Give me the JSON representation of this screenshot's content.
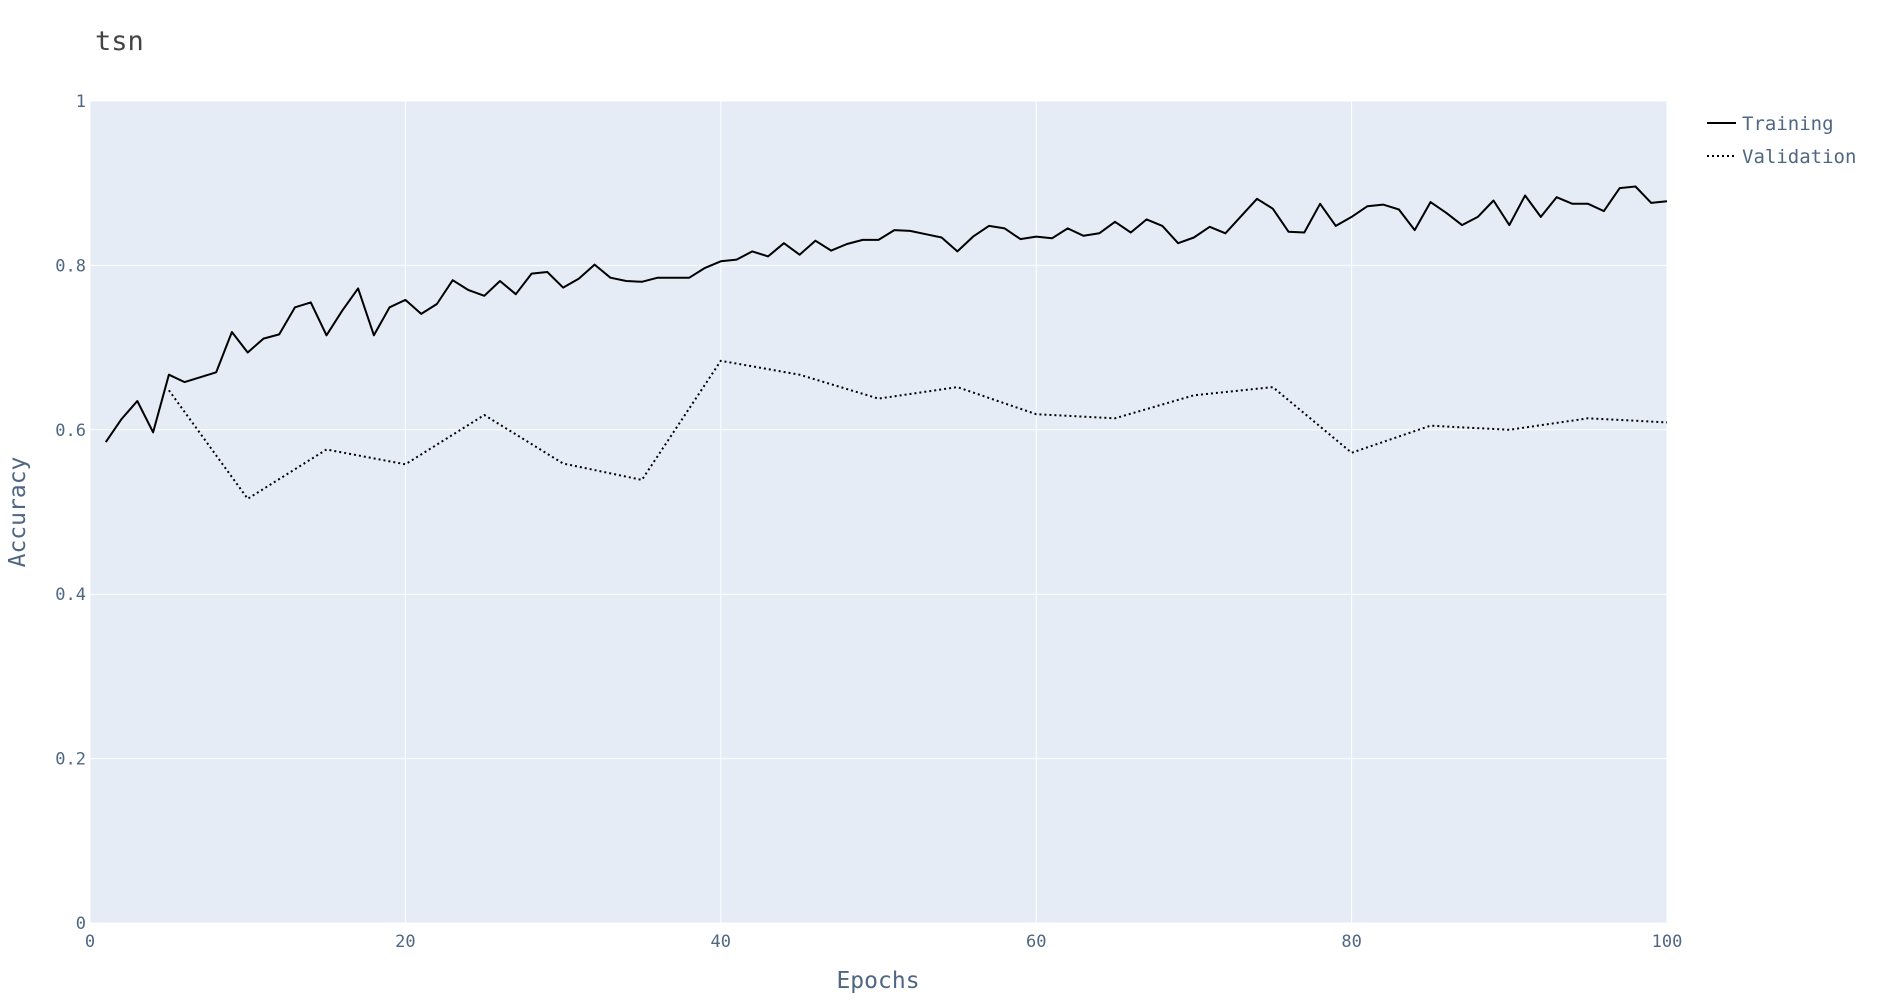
{
  "chart_data": {
    "type": "line",
    "title": "tsn",
    "xlabel": "Epochs",
    "ylabel": "Accuracy",
    "xlim": [
      0,
      100
    ],
    "ylim": [
      0,
      1
    ],
    "x_ticks": [
      0,
      20,
      40,
      60,
      80,
      100
    ],
    "x_tick_labels": [
      "0",
      "20",
      "40",
      "60",
      "80",
      "100"
    ],
    "y_ticks": [
      0,
      0.2,
      0.4,
      0.6,
      0.8,
      1
    ],
    "y_tick_labels": [
      "0",
      "0.2",
      "0.4",
      "0.6",
      "0.8",
      "1"
    ],
    "grid": true,
    "legend_position": "top-right, outside plot",
    "colors": {
      "plot_background": "#e5ecf6",
      "grid": "#ffffff",
      "line": "#000000",
      "text": "#506784"
    },
    "series": [
      {
        "name": "Training",
        "dash": "solid",
        "x": [
          1,
          2,
          3,
          4,
          5,
          6,
          7,
          8,
          9,
          10,
          11,
          12,
          13,
          14,
          15,
          16,
          17,
          18,
          19,
          20,
          21,
          22,
          23,
          24,
          25,
          26,
          27,
          28,
          29,
          30,
          31,
          32,
          33,
          34,
          35,
          36,
          37,
          38,
          39,
          40,
          41,
          42,
          43,
          44,
          45,
          46,
          47,
          48,
          49,
          50,
          51,
          52,
          53,
          54,
          55,
          56,
          57,
          58,
          59,
          60,
          61,
          62,
          63,
          64,
          65,
          66,
          67,
          68,
          69,
          70,
          71,
          72,
          73,
          74,
          75,
          76,
          77,
          78,
          79,
          80,
          81,
          82,
          83,
          84,
          85,
          86,
          87,
          88,
          89,
          90,
          91,
          92,
          93,
          94,
          95,
          96,
          97,
          98,
          99,
          100
        ],
        "values": [
          0.585,
          0.613,
          0.635,
          0.597,
          0.667,
          0.658,
          0.664,
          0.67,
          0.719,
          0.694,
          0.711,
          0.716,
          0.749,
          0.755,
          0.715,
          0.745,
          0.772,
          0.715,
          0.749,
          0.758,
          0.741,
          0.753,
          0.782,
          0.77,
          0.763,
          0.781,
          0.765,
          0.79,
          0.792,
          0.773,
          0.784,
          0.801,
          0.785,
          0.781,
          0.78,
          0.785,
          0.785,
          0.785,
          0.797,
          0.805,
          0.807,
          0.817,
          0.811,
          0.827,
          0.813,
          0.83,
          0.818,
          0.826,
          0.831,
          0.831,
          0.843,
          0.842,
          0.838,
          0.834,
          0.817,
          0.835,
          0.848,
          0.845,
          0.832,
          0.835,
          0.833,
          0.845,
          0.836,
          0.839,
          0.853,
          0.84,
          0.856,
          0.848,
          0.827,
          0.834,
          0.847,
          0.839,
          0.86,
          0.881,
          0.869,
          0.841,
          0.84,
          0.875,
          0.848,
          0.859,
          0.872,
          0.874,
          0.868,
          0.843,
          0.877,
          0.864,
          0.849,
          0.859,
          0.879,
          0.849,
          0.885,
          0.859,
          0.883,
          0.875,
          0.875,
          0.866,
          0.894,
          0.896,
          0.876,
          0.878
        ]
      },
      {
        "name": "Validation",
        "dash": "dot",
        "x": [
          5,
          10,
          15,
          20,
          25,
          30,
          35,
          40,
          45,
          50,
          55,
          60,
          65,
          70,
          75,
          80,
          85,
          90,
          95,
          100
        ],
        "values": [
          0.648,
          0.516,
          0.576,
          0.558,
          0.618,
          0.559,
          0.539,
          0.684,
          0.667,
          0.638,
          0.652,
          0.619,
          0.614,
          0.642,
          0.652,
          0.572,
          0.605,
          0.6,
          0.614,
          0.609
        ]
      }
    ]
  }
}
